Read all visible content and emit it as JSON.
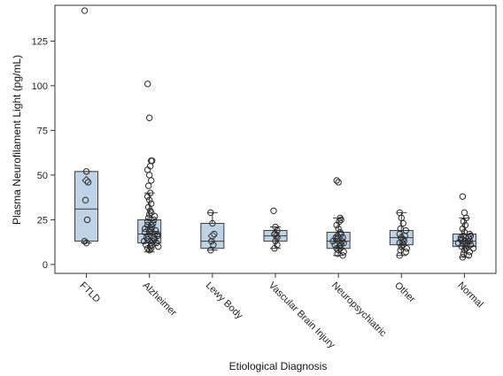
{
  "chart_data": {
    "type": "box",
    "xlabel": "Etiological Diagnosis",
    "ylabel": "Plasma Neurofilament Light (pg/mL)",
    "ylim": [
      -5,
      145
    ],
    "yticks": [
      0,
      25,
      50,
      75,
      100,
      125
    ],
    "grid": false,
    "colors": {
      "box_fill": "#bed3e6",
      "box_stroke": "#3a3a3a",
      "point_stroke": "#2a2a2a",
      "axis": "#333333"
    },
    "categories": [
      "FTLD",
      "Alzheimer",
      "Lewy Body",
      "Vascular Brain Injury",
      "Neuropsychiatric",
      "Other",
      "Normal"
    ],
    "boxes": [
      {
        "q1": 13,
        "median": 31,
        "q3": 52,
        "whisker_low": 12,
        "whisker_high": 52,
        "mean": 47,
        "points": [
          142,
          52,
          46,
          36,
          25,
          13,
          12
        ]
      },
      {
        "q1": 12,
        "median": 17,
        "q3": 25,
        "whisker_low": 7,
        "whisker_high": 40,
        "mean": 20,
        "points": [
          101,
          82,
          58,
          58,
          55,
          53,
          50,
          47,
          44,
          40,
          38,
          36,
          34,
          32,
          30,
          29,
          28,
          27,
          26,
          25,
          24,
          23,
          22,
          21,
          20,
          19,
          18,
          17,
          16,
          15,
          14,
          13,
          12,
          11,
          10,
          9,
          8,
          22,
          18,
          15,
          13,
          11,
          9,
          20,
          16,
          14,
          12,
          10,
          19,
          17
        ]
      },
      {
        "q1": 9,
        "median": 13,
        "q3": 23,
        "whisker_low": 8,
        "whisker_high": 29,
        "mean": 16,
        "points": [
          29,
          23,
          17,
          13,
          11,
          8
        ]
      },
      {
        "q1": 13,
        "median": 16,
        "q3": 19,
        "whisker_low": 9,
        "whisker_high": 21,
        "mean": 17,
        "points": [
          30,
          21,
          19,
          17,
          16,
          15,
          13,
          11,
          9
        ]
      },
      {
        "q1": 9,
        "median": 13,
        "q3": 18,
        "whisker_low": 5,
        "whisker_high": 26,
        "mean": 15,
        "points": [
          47,
          46,
          26,
          25,
          24,
          22,
          20,
          18,
          16,
          15,
          14,
          13,
          12,
          11,
          10,
          9,
          8,
          7,
          6,
          5,
          13,
          11,
          9,
          17,
          15,
          12
        ]
      },
      {
        "q1": 11,
        "median": 15,
        "q3": 19,
        "whisker_low": 5,
        "whisker_high": 29,
        "mean": 15,
        "points": [
          29,
          26,
          23,
          20,
          19,
          17,
          15,
          14,
          13,
          12,
          11,
          10,
          9,
          8,
          7,
          5,
          16,
          12
        ]
      },
      {
        "q1": 10,
        "median": 13,
        "q3": 17,
        "whisker_low": 4,
        "whisker_high": 26,
        "mean": 13,
        "points": [
          38,
          29,
          26,
          24,
          22,
          20,
          18,
          17,
          16,
          15,
          14,
          13,
          12,
          11,
          10,
          9,
          8,
          7,
          6,
          5,
          4,
          14,
          12,
          11,
          10,
          13,
          15,
          9,
          16,
          12
        ]
      }
    ]
  }
}
